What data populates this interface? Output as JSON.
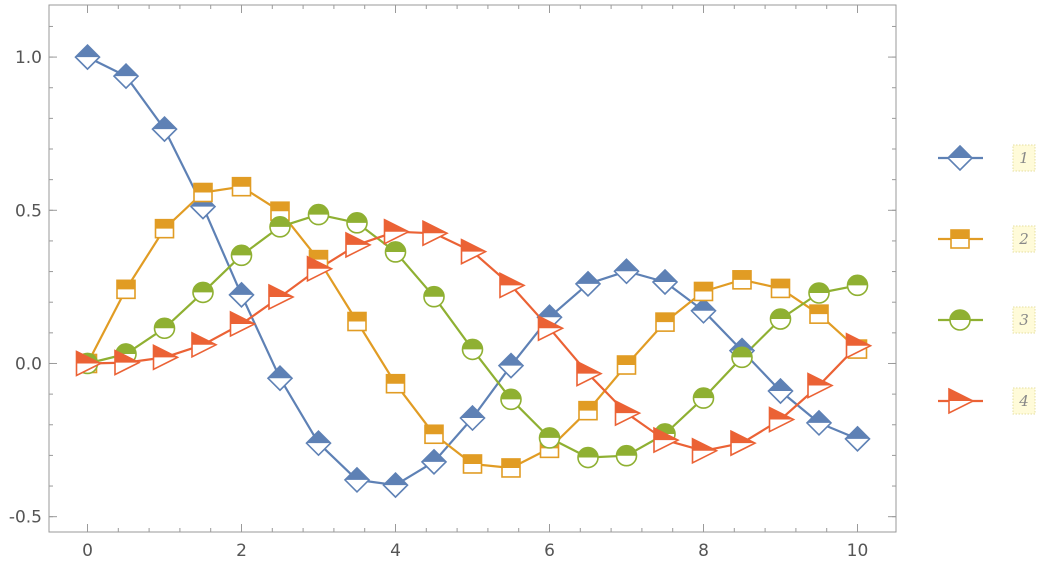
{
  "chart_data": {
    "type": "line",
    "title": "",
    "xlabel": "",
    "ylabel": "",
    "xlim": [
      -0.5,
      10.5
    ],
    "ylim": [
      -0.55,
      1.17
    ],
    "xticks": [
      0,
      2,
      4,
      6,
      8,
      10
    ],
    "xtick_labels": [
      "0",
      "2",
      "4",
      "6",
      "8",
      "10"
    ],
    "yticks": [
      -0.5,
      0.0,
      0.5,
      1.0
    ],
    "ytick_labels": [
      "-0.5",
      "0.0",
      "0.5",
      "1.0"
    ],
    "grid": false,
    "legend_position": "right",
    "x": [
      0,
      0.5,
      1,
      1.5,
      2,
      2.5,
      3,
      3.5,
      4,
      4.5,
      5,
      5.5,
      6,
      6.5,
      7,
      7.5,
      8,
      8.5,
      9,
      9.5,
      10
    ],
    "series": [
      {
        "name": "1",
        "color": "#5E81B5",
        "marker": "diamond",
        "values": [
          1.0,
          0.938,
          0.765,
          0.512,
          0.224,
          -0.048,
          -0.26,
          -0.38,
          -0.397,
          -0.321,
          -0.178,
          -0.007,
          0.151,
          0.26,
          0.301,
          0.266,
          0.172,
          0.042,
          -0.09,
          -0.194,
          -0.246
        ]
      },
      {
        "name": "2",
        "color": "#E19C24",
        "marker": "square",
        "values": [
          0.0,
          0.242,
          0.44,
          0.558,
          0.577,
          0.497,
          0.339,
          0.137,
          -0.066,
          -0.231,
          -0.328,
          -0.341,
          -0.277,
          -0.154,
          -0.005,
          0.135,
          0.235,
          0.273,
          0.245,
          0.161,
          0.047
        ]
      },
      {
        "name": "3",
        "color": "#8FB032",
        "marker": "circle",
        "values": [
          0.0,
          0.031,
          0.115,
          0.232,
          0.353,
          0.446,
          0.486,
          0.459,
          0.364,
          0.218,
          0.046,
          -0.117,
          -0.243,
          -0.307,
          -0.301,
          -0.23,
          -0.113,
          0.02,
          0.145,
          0.23,
          0.255
        ]
      },
      {
        "name": "4",
        "color": "#EB6235",
        "marker": "triangle-right",
        "values": [
          0.0,
          0.003,
          0.02,
          0.061,
          0.129,
          0.217,
          0.309,
          0.387,
          0.43,
          0.425,
          0.365,
          0.255,
          0.115,
          -0.033,
          -0.162,
          -0.25,
          -0.285,
          -0.26,
          -0.183,
          -0.072,
          0.058
        ]
      }
    ]
  }
}
